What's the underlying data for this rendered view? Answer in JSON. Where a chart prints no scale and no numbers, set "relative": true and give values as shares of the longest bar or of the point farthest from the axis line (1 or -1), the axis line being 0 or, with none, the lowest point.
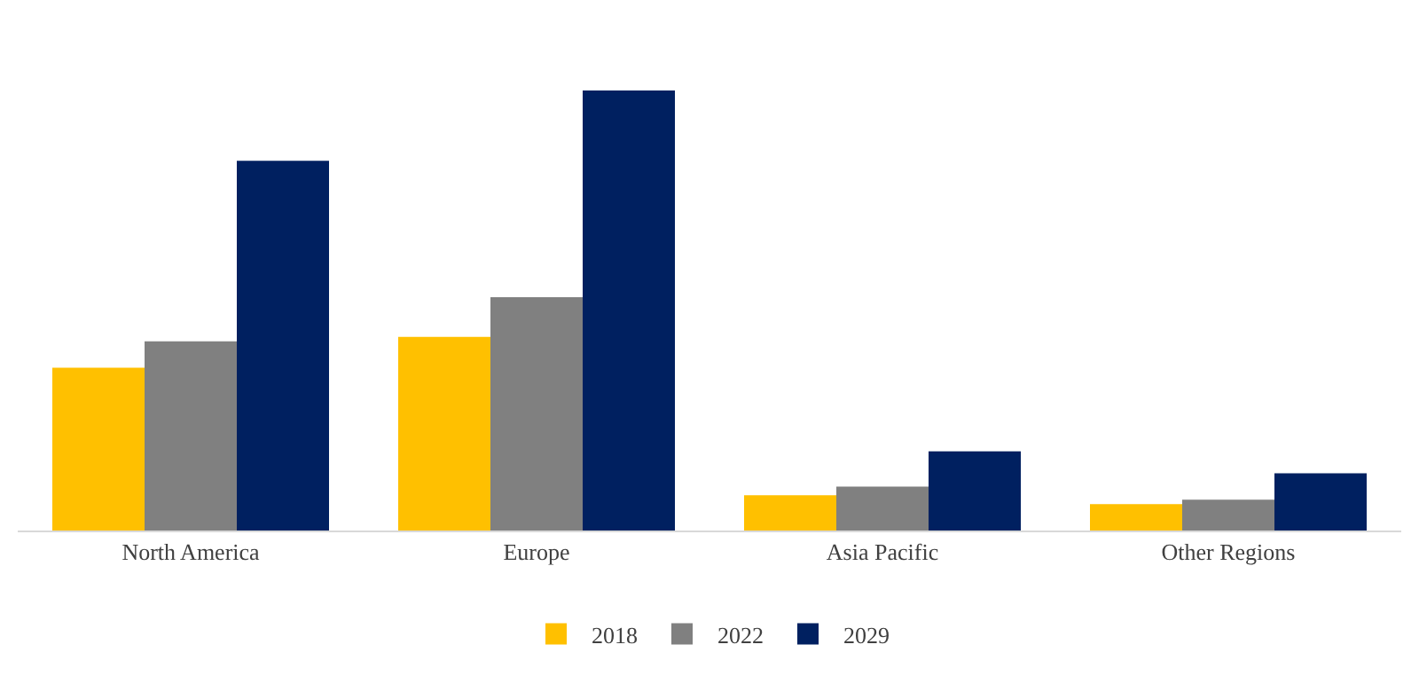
{
  "chart_data": {
    "type": "bar",
    "relative": true,
    "categories": [
      "North America",
      "Europe",
      "Asia Pacific",
      "Other Regions"
    ],
    "series": [
      {
        "name": "2018",
        "color": "#ffc000",
        "values": [
          0.37,
          0.44,
          0.08,
          0.06
        ]
      },
      {
        "name": "2022",
        "color": "#808080",
        "values": [
          0.43,
          0.53,
          0.1,
          0.07
        ]
      },
      {
        "name": "2029",
        "color": "#002060",
        "values": [
          0.84,
          1,
          0.18,
          0.13
        ]
      }
    ],
    "legend": "bottom"
  }
}
